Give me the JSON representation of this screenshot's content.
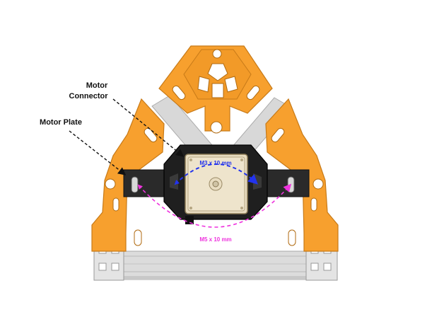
{
  "labels": {
    "motor_plate": "Motor Plate",
    "motor_connector_line1": "Motor",
    "motor_connector_line2": "Connector",
    "m3_dimension": "M3 x 10 mm",
    "m5_dimension": "M5 x 10 mm"
  },
  "colors": {
    "orange": "#f7a02e",
    "orange_dark": "#d9821a",
    "black_part": "#1f1f1f",
    "extrusion": "#d6d6d6",
    "m3_arrow": "#2233ee",
    "m5_arrow": "#ee33dd",
    "motor_face": "#e8dcc0"
  }
}
